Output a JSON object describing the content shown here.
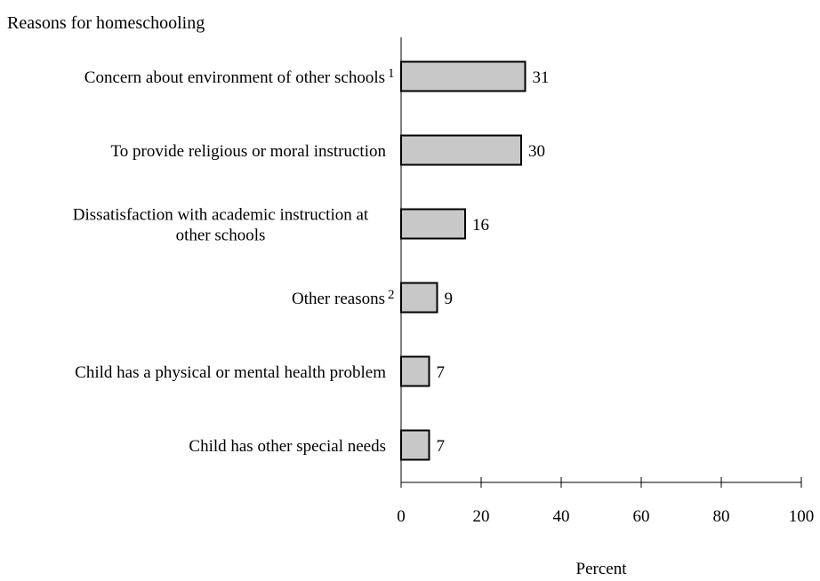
{
  "chart_data": {
    "type": "bar",
    "orientation": "horizontal",
    "title": "Reasons for homeschooling",
    "xlabel": "Percent",
    "ylabel": "",
    "xlim": [
      0,
      100
    ],
    "ticks": [
      "0",
      "20",
      "40",
      "60",
      "80",
      "100"
    ],
    "tick_values": [
      0,
      20,
      40,
      60,
      80,
      100
    ],
    "categories": [
      {
        "lines": [
          "Concern about environment of other schools"
        ],
        "footnote": "1"
      },
      {
        "lines": [
          "To provide religious or moral instruction"
        ],
        "footnote": ""
      },
      {
        "lines": [
          "Dissatisfaction with academic instruction at",
          "other schools"
        ],
        "footnote": ""
      },
      {
        "lines": [
          "Other reasons"
        ],
        "footnote": "2"
      },
      {
        "lines": [
          "Child has a physical or mental health problem"
        ],
        "footnote": ""
      },
      {
        "lines": [
          "Child has other special needs"
        ],
        "footnote": ""
      }
    ],
    "values": [
      31,
      30,
      16,
      9,
      7,
      7
    ],
    "value_labels": [
      "31",
      "30",
      "16",
      "9",
      "7",
      "7"
    ],
    "bar_color": "#c8c8c8",
    "bar_edge_color": "#000000",
    "grid": false,
    "legend": "none"
  }
}
